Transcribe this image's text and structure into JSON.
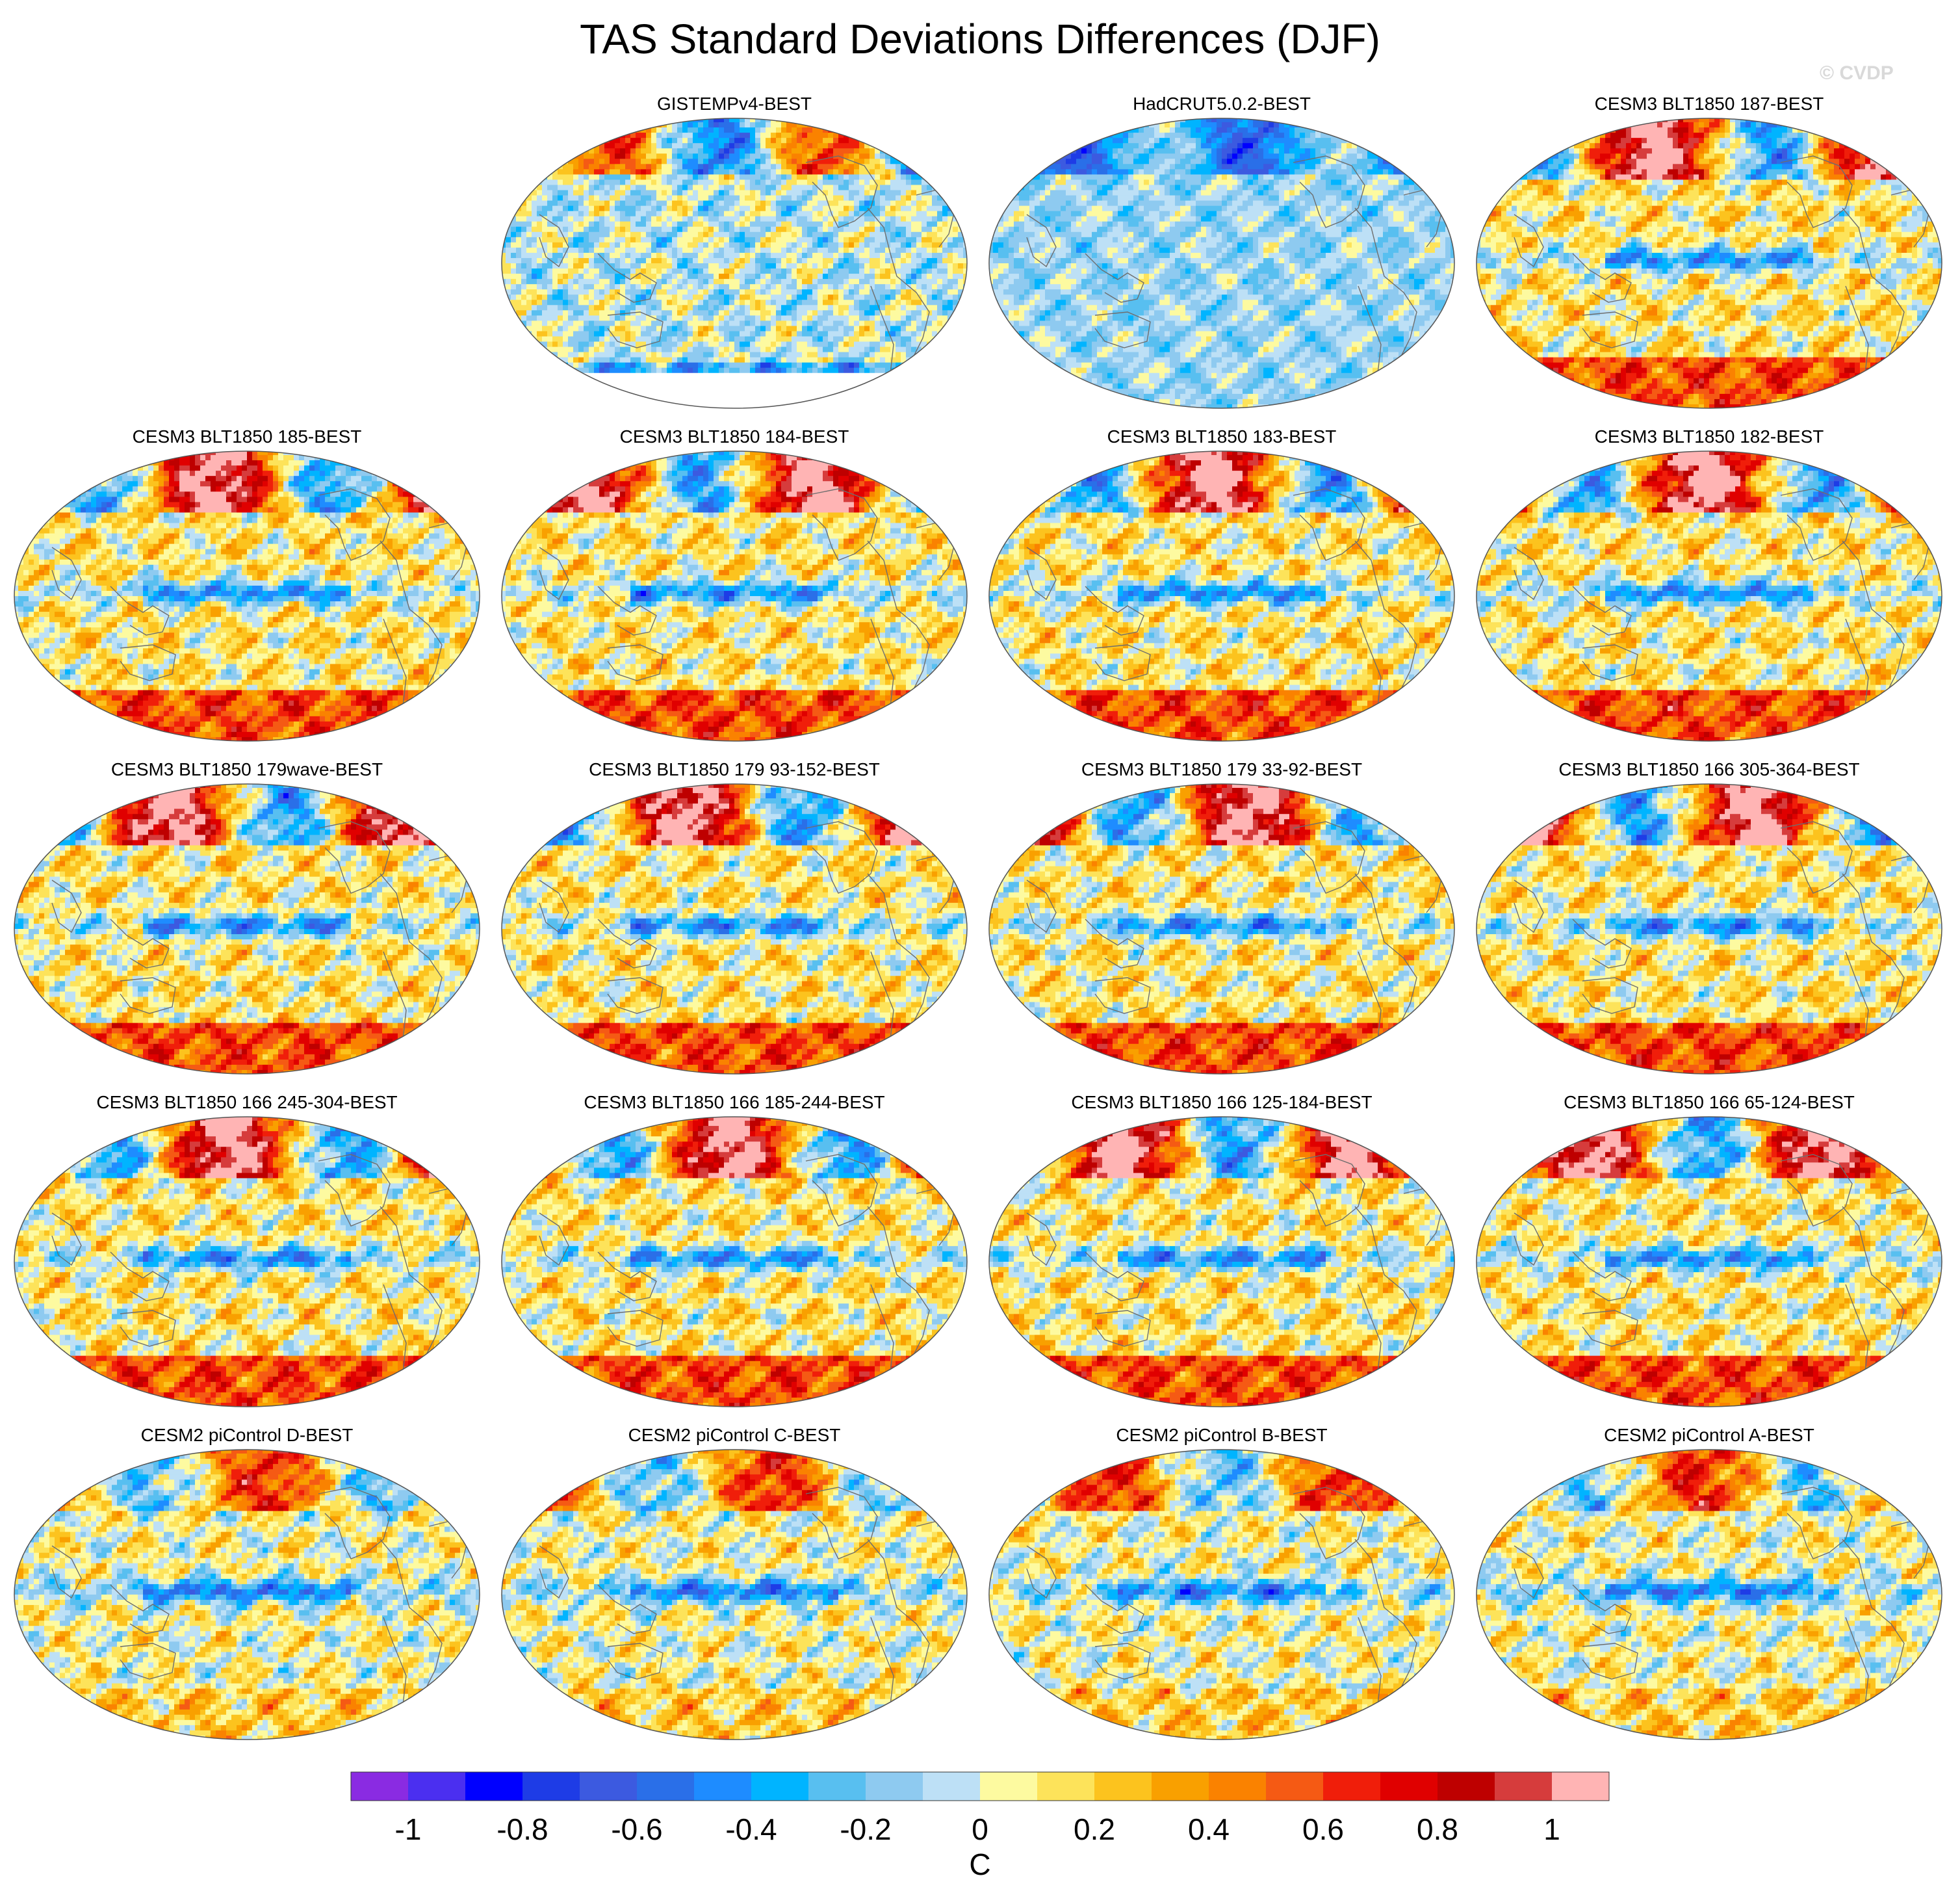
{
  "title": "TAS Standard Deviations Differences (DJF)",
  "watermark": "© CVDP",
  "chart_data": {
    "type": "heatmap",
    "projection": "Robinson-like global map, Pacific-centered",
    "panels": [
      {
        "label": "GISTEMPv4-BEST",
        "style": "obs-gistemp"
      },
      {
        "label": "HadCRUT5.0.2-BEST",
        "style": "obs-hadcrut"
      },
      {
        "label": "CESM3 BLT1850 187-BEST",
        "style": "model-blt"
      },
      {
        "label": "CESM3 BLT1850 185-BEST",
        "style": "model-blt"
      },
      {
        "label": "CESM3 BLT1850 184-BEST",
        "style": "model-blt"
      },
      {
        "label": "CESM3 BLT1850 183-BEST",
        "style": "model-blt"
      },
      {
        "label": "CESM3 BLT1850 182-BEST",
        "style": "model-blt"
      },
      {
        "label": "CESM3 BLT1850 179wave-BEST",
        "style": "model-blt"
      },
      {
        "label": "CESM3 BLT1850 179 93-152-BEST",
        "style": "model-blt"
      },
      {
        "label": "CESM3 BLT1850 179 33-92-BEST",
        "style": "model-blt"
      },
      {
        "label": "CESM3 BLT1850 166 305-364-BEST",
        "style": "model-blt"
      },
      {
        "label": "CESM3 BLT1850 166 245-304-BEST",
        "style": "model-blt"
      },
      {
        "label": "CESM3 BLT1850 166 185-244-BEST",
        "style": "model-blt"
      },
      {
        "label": "CESM3 BLT1850 166 125-184-BEST",
        "style": "model-blt"
      },
      {
        "label": "CESM3 BLT1850 166 65-124-BEST",
        "style": "model-blt"
      },
      {
        "label": "CESM2 piControl D-BEST",
        "style": "model-cesm2"
      },
      {
        "label": "CESM2 piControl C-BEST",
        "style": "model-cesm2"
      },
      {
        "label": "CESM2 piControl B-BEST",
        "style": "model-cesm2"
      },
      {
        "label": "CESM2 piControl A-BEST",
        "style": "model-cesm2"
      }
    ],
    "colorbar": {
      "unit_label": "C",
      "tick_labels": [
        "-1",
        "-0.8",
        "-0.6",
        "-0.4",
        "-0.2",
        "0",
        "0.2",
        "0.4",
        "0.6",
        "0.8",
        "1"
      ],
      "levels": [
        -1.1,
        -1.0,
        -0.9,
        -0.8,
        -0.7,
        -0.6,
        -0.5,
        -0.4,
        -0.3,
        -0.2,
        -0.1,
        0,
        0.1,
        0.2,
        0.3,
        0.4,
        0.5,
        0.6,
        0.7,
        0.8,
        0.9,
        1.0,
        1.1
      ],
      "colors": [
        "#8a2be2",
        "#4b2ff0",
        "#0000ff",
        "#1e3ce6",
        "#3c5ae0",
        "#2a6fe8",
        "#1e8cff",
        "#00b4ff",
        "#58bff0",
        "#8ecaf0",
        "#bde0f6",
        "#fdfaa0",
        "#fde35a",
        "#fcc31e",
        "#f9a000",
        "#fa8200",
        "#f55a14",
        "#f01e0a",
        "#e00000",
        "#be0000",
        "#d63c3c",
        "#ffb4b4"
      ]
    }
  }
}
